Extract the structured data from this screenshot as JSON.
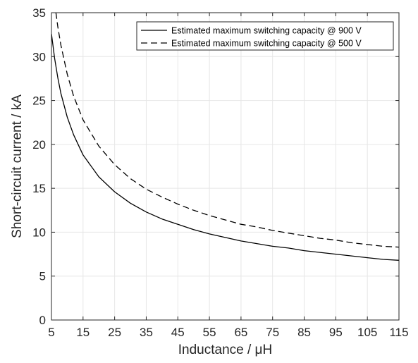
{
  "chart_data": {
    "type": "line",
    "title": "",
    "xlabel": "Inductance / μH",
    "ylabel": "Short-circuit current / kA",
    "xlim": [
      5,
      115
    ],
    "ylim": [
      0,
      35
    ],
    "x_ticks": [
      5,
      15,
      25,
      35,
      45,
      55,
      65,
      75,
      85,
      95,
      105,
      115
    ],
    "y_ticks": [
      0,
      5,
      10,
      15,
      20,
      25,
      30,
      35
    ],
    "grid": true,
    "legend_position": "top-right",
    "x": [
      5,
      6,
      7,
      8,
      10,
      12,
      15,
      20,
      25,
      30,
      35,
      40,
      45,
      50,
      55,
      60,
      65,
      70,
      75,
      80,
      85,
      90,
      95,
      100,
      105,
      110,
      115
    ],
    "series": [
      {
        "name": "Estimated maximum switching capacity @ 900 V",
        "style": "solid",
        "color": "#000000",
        "values": [
          32.6,
          29.8,
          27.6,
          25.8,
          23.1,
          21.1,
          18.8,
          16.3,
          14.6,
          13.3,
          12.3,
          11.5,
          10.9,
          10.3,
          9.8,
          9.4,
          9.0,
          8.7,
          8.4,
          8.2,
          7.9,
          7.7,
          7.5,
          7.3,
          7.1,
          6.9,
          6.8
        ]
      },
      {
        "name": "Estimated maximum switching capacity @ 500 V",
        "style": "dashed",
        "color": "#000000",
        "values": [
          35.0,
          36.1,
          33.4,
          31.3,
          28.0,
          25.5,
          22.8,
          19.8,
          17.7,
          16.1,
          14.9,
          14.0,
          13.2,
          12.5,
          11.9,
          11.4,
          10.9,
          10.6,
          10.2,
          9.9,
          9.6,
          9.3,
          9.1,
          8.8,
          8.6,
          8.4,
          8.3
        ]
      }
    ]
  }
}
